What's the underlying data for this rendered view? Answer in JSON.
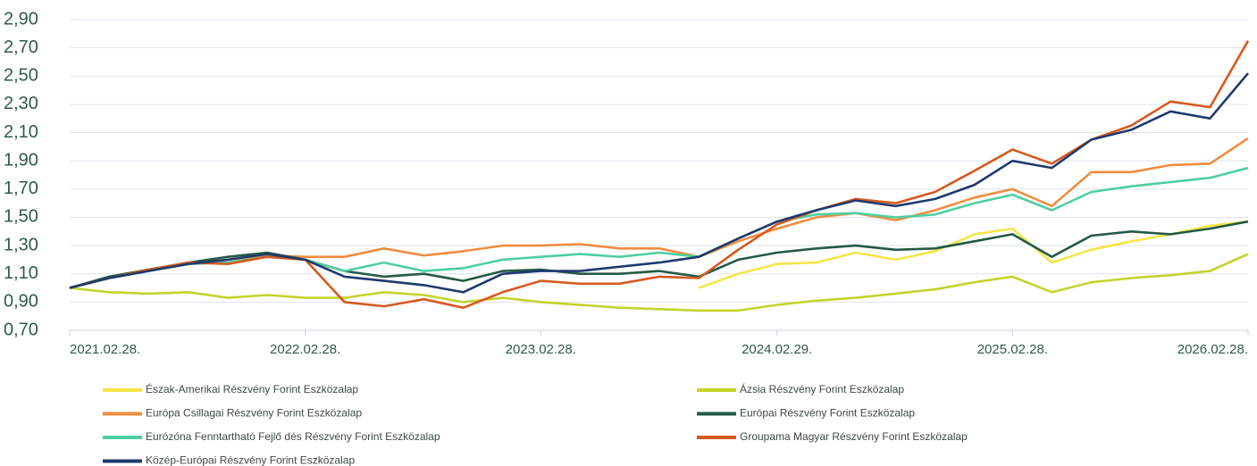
{
  "chart_data": {
    "type": "line",
    "x": [
      "2021.02.28.",
      "2021.04.30.",
      "2021.06.30.",
      "2021.08.31.",
      "2021.10.31.",
      "2021.12.31.",
      "2022.02.28.",
      "2022.04.30.",
      "2022.06.30.",
      "2022.08.31.",
      "2022.10.31.",
      "2022.12.31.",
      "2023.02.28.",
      "2023.04.30.",
      "2023.06.30.",
      "2023.08.31.",
      "2023.10.31.",
      "2023.12.31.",
      "2024.02.29.",
      "2024.04.30.",
      "2024.06.30.",
      "2024.08.31.",
      "2024.10.31.",
      "2024.12.31.",
      "2025.02.28.",
      "2025.04.30.",
      "2025.06.30.",
      "2025.08.31.",
      "2025.10.31.",
      "2025.12.31.",
      "2026.02.28."
    ],
    "series": [
      {
        "name": "Észak-Amerikai Részvény Forint Eszközalap",
        "color": "#f5e547",
        "values": [
          null,
          null,
          null,
          null,
          null,
          null,
          null,
          null,
          null,
          null,
          null,
          null,
          null,
          null,
          null,
          null,
          1.0,
          1.1,
          1.17,
          1.18,
          1.25,
          1.2,
          1.26,
          1.38,
          1.42,
          1.18,
          1.27,
          1.33,
          1.38,
          1.44,
          1.47
        ]
      },
      {
        "name": "Ázsia Részvény Forint Eszközalap",
        "color": "#c5d32a",
        "values": [
          1.0,
          0.97,
          0.96,
          0.97,
          0.93,
          0.95,
          0.93,
          0.93,
          0.97,
          0.95,
          0.9,
          0.93,
          0.9,
          0.88,
          0.86,
          0.85,
          0.84,
          0.84,
          0.88,
          0.91,
          0.93,
          0.96,
          0.99,
          1.04,
          1.08,
          0.97,
          1.04,
          1.07,
          1.09,
          1.12,
          1.24
        ]
      },
      {
        "name": "Európa Csillagai Részvény Forint Eszközalap",
        "color": "#f08c3f",
        "values": [
          1.0,
          1.07,
          1.13,
          1.17,
          1.2,
          1.23,
          1.22,
          1.22,
          1.28,
          1.23,
          1.26,
          1.3,
          1.3,
          1.31,
          1.28,
          1.28,
          1.22,
          1.33,
          1.42,
          1.5,
          1.53,
          1.48,
          1.55,
          1.64,
          1.7,
          1.58,
          1.82,
          1.82,
          1.87,
          1.88,
          2.06
        ]
      },
      {
        "name": "Európai Részvény Forint Eszközalap",
        "color": "#245a45",
        "values": [
          1.0,
          1.08,
          1.13,
          1.18,
          1.22,
          1.25,
          1.2,
          1.12,
          1.08,
          1.1,
          1.05,
          1.12,
          1.13,
          1.1,
          1.1,
          1.12,
          1.08,
          1.2,
          1.25,
          1.28,
          1.3,
          1.27,
          1.28,
          1.33,
          1.38,
          1.22,
          1.37,
          1.4,
          1.38,
          1.42,
          1.47
        ]
      },
      {
        "name": "Eurózóna Fenntartható Fejlő dés Részvény Forint Eszközalap",
        "color": "#4ecfa0",
        "values": [
          1.0,
          1.07,
          1.12,
          1.17,
          1.18,
          1.22,
          1.2,
          1.12,
          1.18,
          1.12,
          1.14,
          1.2,
          1.22,
          1.24,
          1.22,
          1.25,
          1.22,
          1.35,
          1.47,
          1.52,
          1.53,
          1.5,
          1.52,
          1.6,
          1.66,
          1.55,
          1.68,
          1.72,
          1.75,
          1.78,
          1.85
        ]
      },
      {
        "name": "Groupama Magyar Részvény Forint Eszközalap",
        "color": "#d65a20",
        "values": [
          1.0,
          1.07,
          1.13,
          1.18,
          1.17,
          1.22,
          1.2,
          0.9,
          0.87,
          0.92,
          0.86,
          0.97,
          1.05,
          1.03,
          1.03,
          1.08,
          1.07,
          1.27,
          1.45,
          1.55,
          1.63,
          1.6,
          1.68,
          1.83,
          1.98,
          1.88,
          2.05,
          2.15,
          2.32,
          2.28,
          2.75
        ]
      },
      {
        "name": "Közép-Európai Részvény Forint Eszközalap",
        "color": "#1e3a6e",
        "values": [
          1.0,
          1.07,
          1.12,
          1.17,
          1.2,
          1.24,
          1.2,
          1.08,
          1.05,
          1.02,
          0.97,
          1.1,
          1.12,
          1.12,
          1.15,
          1.18,
          1.22,
          1.35,
          1.47,
          1.55,
          1.62,
          1.58,
          1.63,
          1.73,
          1.9,
          1.85,
          2.05,
          2.12,
          2.25,
          2.2,
          2.52
        ]
      }
    ],
    "ylim": [
      0.7,
      2.9
    ],
    "yticks": [
      {
        "value": 0.7,
        "label": "0,70"
      },
      {
        "value": 0.9,
        "label": "0,90"
      },
      {
        "value": 1.1,
        "label": "1,10"
      },
      {
        "value": 1.3,
        "label": "1,30"
      },
      {
        "value": 1.5,
        "label": "1,50"
      },
      {
        "value": 1.7,
        "label": "1,70"
      },
      {
        "value": 1.9,
        "label": "1,90"
      },
      {
        "value": 2.1,
        "label": "2,10"
      },
      {
        "value": 2.3,
        "label": "2,30"
      },
      {
        "value": 2.5,
        "label": "2,50"
      },
      {
        "value": 2.7,
        "label": "2,70"
      },
      {
        "value": 2.9,
        "label": "2,90"
      }
    ],
    "xlim": [
      "2021.02.28.",
      "2026.02.28."
    ],
    "xticks": [
      "2021.02.28.",
      "2022.02.28.",
      "2023.02.28.",
      "2024.02.29.",
      "2025.02.28.",
      "2026.02.28."
    ],
    "grid": true
  }
}
